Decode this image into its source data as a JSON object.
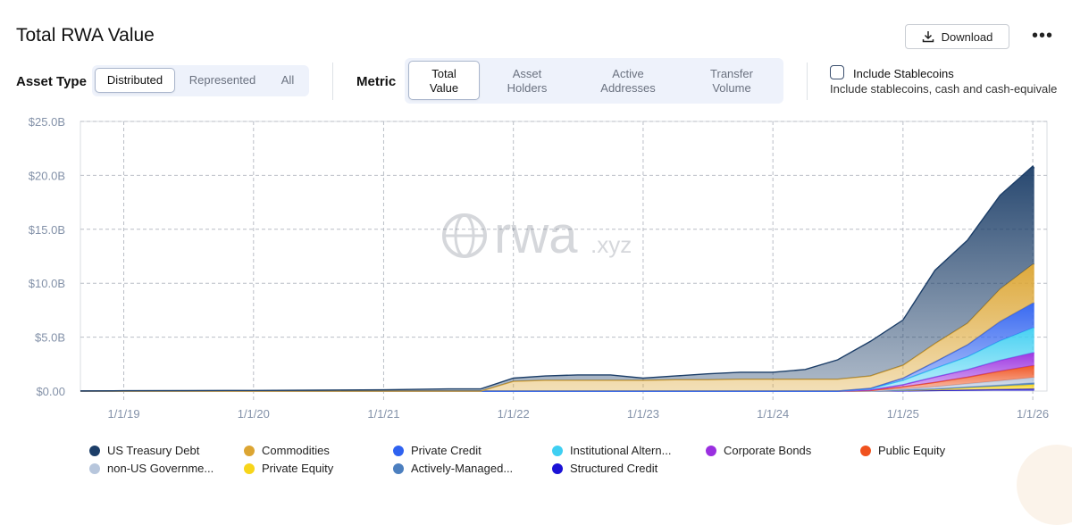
{
  "header": {
    "title": "Total RWA Value",
    "download_label": "Download",
    "download_icon": "download-icon",
    "more_label": "•••"
  },
  "filters": {
    "asset_type_label": "Asset Type",
    "asset_type_options": [
      "Distributed",
      "Represented",
      "All"
    ],
    "asset_type_selected": "Distributed",
    "metric_label": "Metric",
    "metric_options": [
      {
        "line1": "Total",
        "line2": "Value"
      },
      {
        "line1": "Asset",
        "line2": "Holders"
      },
      {
        "line1": "Active",
        "line2": "Addresses"
      },
      {
        "line1": "Transfer",
        "line2": "Volume"
      }
    ],
    "metric_selected": "Total Value",
    "stablecoins_label": "Include Stablecoins",
    "stablecoins_desc": "Include stablecoins, cash and cash-equivale",
    "stablecoins_checked": false
  },
  "watermark": {
    "main": "rwa",
    "suffix": ".xyz"
  },
  "chart_data": {
    "type": "area",
    "stacked": true,
    "title": "",
    "xlabel": "",
    "ylabel": "",
    "x_ticks": [
      "1/1/19",
      "1/1/20",
      "1/1/21",
      "1/1/22",
      "1/1/23",
      "1/1/24",
      "1/1/25",
      "1/1/26"
    ],
    "y_ticks": [
      "$0.00",
      "$5.0B",
      "$10.0B",
      "$15.0B",
      "$20.0B",
      "$25.0B"
    ],
    "ylim": [
      0,
      25
    ],
    "y_unit": "USD billions",
    "grid": true,
    "legend_position": "bottom",
    "x": [
      "2018-09-01",
      "2019-01-01",
      "2019-07-01",
      "2020-01-01",
      "2020-07-01",
      "2021-01-01",
      "2021-07-01",
      "2021-10-01",
      "2022-01-01",
      "2022-04-01",
      "2022-07-01",
      "2022-10-01",
      "2023-01-01",
      "2023-04-01",
      "2023-07-01",
      "2023-10-01",
      "2024-01-01",
      "2024-04-01",
      "2024-07-01",
      "2024-10-01",
      "2025-01-01",
      "2025-04-01",
      "2025-07-01",
      "2025-10-01",
      "2026-01-01",
      "2026-01-05"
    ],
    "series": [
      {
        "name": "Structured Credit",
        "color": "#1b12d6",
        "values": [
          0,
          0,
          0,
          0,
          0,
          0,
          0,
          0,
          0,
          0,
          0,
          0,
          0,
          0,
          0,
          0,
          0,
          0,
          0,
          0,
          0.02,
          0.05,
          0.1,
          0.15,
          0.2,
          0.2
        ]
      },
      {
        "name": "Private Equity",
        "color": "#f7d51a",
        "values": [
          0,
          0,
          0,
          0,
          0,
          0,
          0,
          0,
          0,
          0,
          0,
          0,
          0,
          0,
          0,
          0,
          0,
          0,
          0,
          0,
          0.05,
          0.1,
          0.2,
          0.3,
          0.4,
          0.4
        ]
      },
      {
        "name": "Actively-Managed Strategies",
        "color": "#4c7fbf",
        "values": [
          0,
          0,
          0,
          0,
          0,
          0,
          0,
          0,
          0,
          0,
          0,
          0,
          0,
          0,
          0,
          0,
          0,
          0,
          0,
          0,
          0.02,
          0.05,
          0.08,
          0.1,
          0.15,
          0.15
        ]
      },
      {
        "name": "non-US Government Debt",
        "color": "#b7c6dc",
        "values": [
          0,
          0,
          0,
          0,
          0,
          0,
          0,
          0,
          0,
          0,
          0,
          0,
          0,
          0,
          0,
          0,
          0,
          0,
          0,
          0,
          0.1,
          0.2,
          0.3,
          0.4,
          0.5,
          0.5
        ]
      },
      {
        "name": "Public Equity",
        "color": "#f0521e",
        "values": [
          0,
          0,
          0,
          0,
          0,
          0,
          0,
          0,
          0,
          0,
          0,
          0,
          0,
          0,
          0,
          0,
          0,
          0,
          0,
          0.05,
          0.2,
          0.4,
          0.6,
          0.9,
          1.1,
          1.1
        ]
      },
      {
        "name": "Corporate Bonds",
        "color": "#9a2fe0",
        "values": [
          0,
          0,
          0,
          0,
          0,
          0,
          0,
          0,
          0,
          0,
          0,
          0,
          0,
          0,
          0,
          0,
          0,
          0,
          0,
          0.05,
          0.2,
          0.5,
          0.7,
          1.0,
          1.2,
          1.2
        ]
      },
      {
        "name": "Institutional Alternative Funds",
        "color": "#3fcff2",
        "values": [
          0,
          0,
          0,
          0,
          0,
          0,
          0,
          0,
          0,
          0,
          0,
          0,
          0,
          0,
          0,
          0,
          0,
          0,
          0,
          0.1,
          0.4,
          0.8,
          1.2,
          1.8,
          2.3,
          2.3
        ]
      },
      {
        "name": "Private Credit",
        "color": "#2f62f0",
        "values": [
          0,
          0,
          0,
          0,
          0,
          0,
          0,
          0,
          0,
          0,
          0,
          0,
          0,
          0,
          0,
          0,
          0,
          0,
          0,
          0.05,
          0.2,
          0.6,
          1.1,
          1.8,
          2.3,
          2.3
        ]
      },
      {
        "name": "Commodities",
        "color": "#dca532",
        "values": [
          0,
          0,
          0,
          0,
          0,
          0,
          0,
          0,
          0.9,
          1.0,
          1.0,
          1.0,
          1.0,
          1.05,
          1.05,
          1.1,
          1.1,
          1.1,
          1.1,
          1.15,
          1.2,
          1.7,
          2.0,
          3.0,
          3.6,
          3.6
        ]
      },
      {
        "name": "US Treasury Debt",
        "color": "#1c3e68",
        "values": [
          0.02,
          0.03,
          0.05,
          0.06,
          0.08,
          0.12,
          0.2,
          0.2,
          0.3,
          0.4,
          0.5,
          0.5,
          0.2,
          0.35,
          0.55,
          0.65,
          0.65,
          0.9,
          1.8,
          3.2,
          4.2,
          6.8,
          7.7,
          8.7,
          9.1,
          8.9
        ]
      }
    ]
  },
  "legend": [
    {
      "label": "US Treasury Debt",
      "color": "#1c3e68"
    },
    {
      "label": "Commodities",
      "color": "#dca532"
    },
    {
      "label": "Private Credit",
      "color": "#2f62f0"
    },
    {
      "label": "Institutional Altern...",
      "color": "#3fcff2"
    },
    {
      "label": "Corporate Bonds",
      "color": "#9a2fe0"
    },
    {
      "label": "Public Equity",
      "color": "#f0521e"
    },
    {
      "label": "non-US Governme...",
      "color": "#b7c6dc"
    },
    {
      "label": "Private Equity",
      "color": "#f7d51a"
    },
    {
      "label": "Actively-Managed...",
      "color": "#4c7fbf"
    },
    {
      "label": "Structured Credit",
      "color": "#1b12d6"
    }
  ]
}
